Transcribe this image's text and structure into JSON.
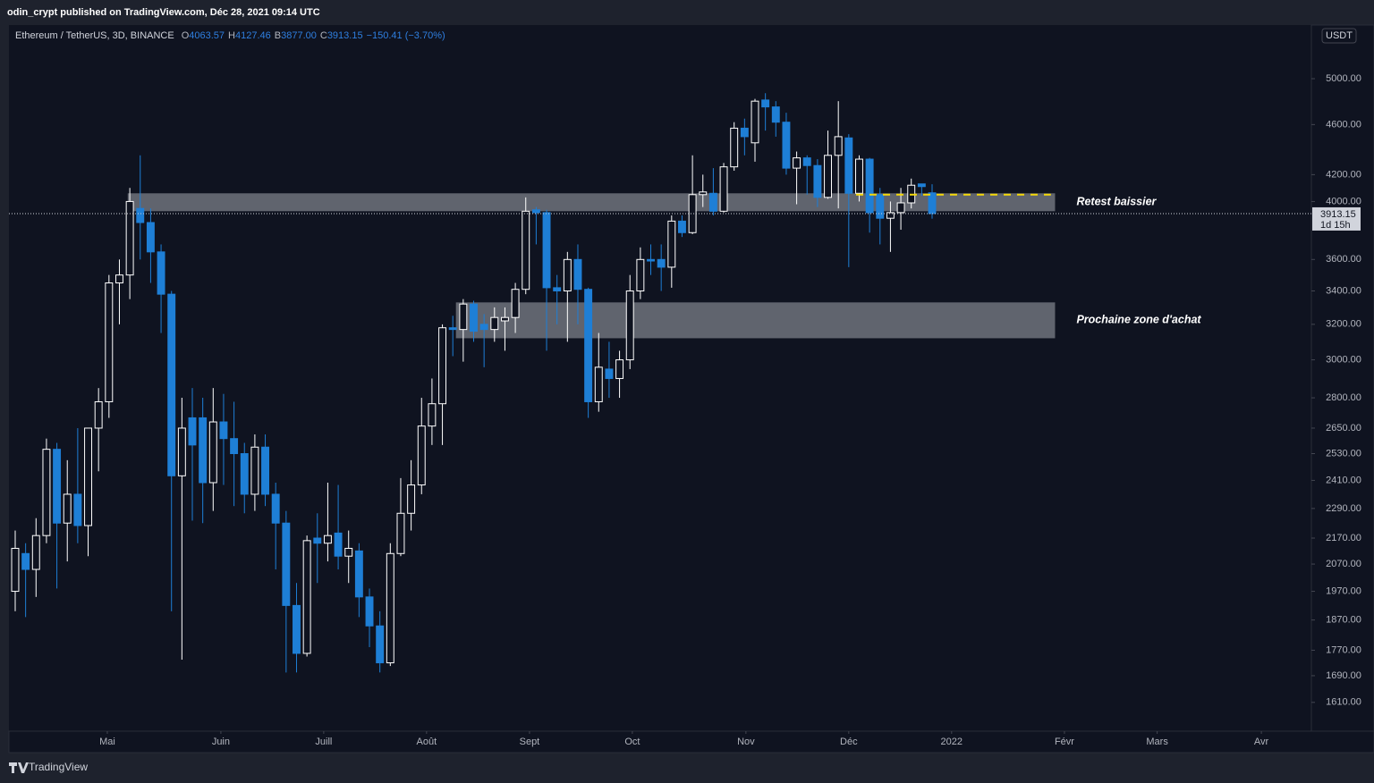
{
  "header": {
    "published": "odin_crypt published on TradingView.com, Déc 28, 2021 09:14 UTC",
    "symbol": "Ethereum / TetherUS, 3D, BINANCE",
    "ohlc_keys": [
      "O",
      "H",
      "B",
      "C"
    ],
    "ohlc_values": [
      "4063.57",
      "4127.46",
      "3877.00",
      "3913.15"
    ],
    "change": "−150.41 (−3.70%)",
    "currency": "USDT",
    "brand": "TradingView"
  },
  "chart_data": {
    "type": "candlestick",
    "y_scale": "log",
    "grid": false,
    "up_color": "#ffffff",
    "down_color": "#1e7fd6",
    "open": [
      1970,
      2110,
      2050,
      2180,
      2550,
      2230,
      2350,
      2220,
      2650,
      2780,
      3450,
      3500,
      3950,
      3850,
      3650,
      3380,
      2430,
      2700,
      2700,
      2400,
      2680,
      2600,
      2530,
      2350,
      2560,
      2350,
      2230,
      1920,
      1760,
      2170,
      2150,
      2190,
      2100,
      2120,
      1950,
      1850,
      1730,
      2110,
      2270,
      2390,
      2660,
      2770,
      3180,
      3170,
      3320,
      3200,
      3170,
      3220,
      3240,
      3410,
      3940,
      3920,
      3420,
      3400,
      3600,
      3410,
      2780,
      2950,
      2900,
      3000,
      3400,
      3600,
      3600,
      3550,
      3860,
      3780,
      4050,
      4060,
      3930,
      4260,
      4570,
      4450,
      4810,
      4750,
      4620,
      4250,
      4330,
      4270,
      4030,
      4350,
      4490,
      4060,
      4320,
      4050,
      3880,
      3920,
      3990,
      4130,
      4063.57
    ],
    "high": [
      2200,
      2150,
      2250,
      2600,
      2580,
      2500,
      2650,
      2650,
      2850,
      3500,
      3600,
      4100,
      4350,
      3950,
      3700,
      3400,
      2800,
      2850,
      2800,
      2850,
      2820,
      2780,
      2580,
      2620,
      2620,
      2400,
      2280,
      2000,
      2180,
      2270,
      2400,
      2390,
      2200,
      2150,
      1980,
      1900,
      2150,
      2420,
      2500,
      2800,
      2900,
      3200,
      3250,
      3350,
      3340,
      3260,
      3300,
      3300,
      3450,
      4030,
      3960,
      3940,
      3500,
      3650,
      3700,
      3420,
      3150,
      3100,
      3050,
      3500,
      3680,
      3700,
      3700,
      3900,
      3900,
      4350,
      4200,
      4250,
      4290,
      4620,
      4650,
      4820,
      4870,
      4800,
      4700,
      4380,
      4350,
      4320,
      4550,
      4800,
      4520,
      4350,
      4330,
      4100,
      4000,
      4100,
      4170,
      4130,
      4127.46
    ],
    "low": [
      1900,
      1880,
      1950,
      2150,
      1980,
      2080,
      2150,
      2100,
      2450,
      2700,
      3200,
      3350,
      3600,
      3450,
      3150,
      1900,
      1740,
      2240,
      2230,
      2280,
      2390,
      2300,
      2270,
      2280,
      2300,
      2050,
      1700,
      1700,
      1750,
      2000,
      2080,
      2050,
      2000,
      1880,
      1780,
      1700,
      1720,
      2100,
      2200,
      2350,
      2570,
      2570,
      3020,
      2990,
      3100,
      2960,
      3100,
      3050,
      3150,
      3380,
      3700,
      3050,
      3200,
      3100,
      3200,
      2700,
      2730,
      2800,
      2800,
      2950,
      3350,
      3500,
      3400,
      3420,
      3750,
      3770,
      3960,
      3900,
      3920,
      4230,
      4350,
      4300,
      4550,
      4500,
      4200,
      3980,
      4050,
      3960,
      4020,
      3950,
      3550,
      4000,
      3780,
      3700,
      3650,
      3800,
      3950,
      4040,
      3877
    ],
    "close": [
      2130,
      2050,
      2180,
      2550,
      2230,
      2350,
      2220,
      2650,
      2780,
      3450,
      3500,
      4000,
      3850,
      3650,
      3380,
      2430,
      2650,
      2570,
      2400,
      2680,
      2600,
      2530,
      2350,
      2560,
      2350,
      2230,
      1920,
      1760,
      2160,
      2150,
      2180,
      2100,
      2130,
      1950,
      1850,
      1730,
      2110,
      2270,
      2390,
      2660,
      2770,
      3180,
      3170,
      3320,
      3160,
      3170,
      3240,
      3240,
      3410,
      3930,
      3920,
      3420,
      3400,
      3600,
      3410,
      2780,
      2960,
      2900,
      3000,
      3400,
      3600,
      3590,
      3550,
      3860,
      3780,
      4050,
      4070,
      3930,
      4260,
      4570,
      4500,
      4800,
      4750,
      4620,
      4250,
      4330,
      4270,
      4030,
      4350,
      4500,
      4060,
      4320,
      3920,
      3880,
      3920,
      3990,
      4120,
      4110,
      3913.15
    ],
    "xlim": [
      -0.6,
      124.4
    ],
    "xticks": [
      {
        "value": 8.84,
        "label": "Mai"
      },
      {
        "value": 19.74,
        "label": "Juin"
      },
      {
        "value": 29.61,
        "label": "Juill"
      },
      {
        "value": 39.48,
        "label": "Août"
      },
      {
        "value": 49.36,
        "label": "Sept"
      },
      {
        "value": 59.23,
        "label": "Oct"
      },
      {
        "value": 70.13,
        "label": "Nov"
      },
      {
        "value": 80.0,
        "label": "Déc"
      },
      {
        "value": 89.87,
        "label": "2022"
      },
      {
        "value": 100.7,
        "label": "Févr"
      },
      {
        "value": 109.6,
        "label": "Mars"
      },
      {
        "value": 119.6,
        "label": "Avr"
      }
    ],
    "ylim": [
      1528,
      5512
    ],
    "yticks": [
      {
        "value": 5000,
        "label": "5000.00"
      },
      {
        "value": 4600,
        "label": "4600.00"
      },
      {
        "value": 4200,
        "label": "4200.00"
      },
      {
        "value": 4000,
        "label": "4000.00"
      },
      {
        "value": 3600,
        "label": "3600.00"
      },
      {
        "value": 3400,
        "label": "3400.00"
      },
      {
        "value": 3200,
        "label": "3200.00"
      },
      {
        "value": 3000,
        "label": "3000.00"
      },
      {
        "value": 2800,
        "label": "2800.00"
      },
      {
        "value": 2650,
        "label": "2650.00"
      },
      {
        "value": 2530,
        "label": "2530.00"
      },
      {
        "value": 2410,
        "label": "2410.00"
      },
      {
        "value": 2290,
        "label": "2290.00"
      },
      {
        "value": 2170,
        "label": "2170.00"
      },
      {
        "value": 2070,
        "label": "2070.00"
      },
      {
        "value": 1970,
        "label": "1970.00"
      },
      {
        "value": 1870,
        "label": "1870.00"
      },
      {
        "value": 1770,
        "label": "1770.00"
      },
      {
        "value": 1690,
        "label": "1690.00"
      },
      {
        "value": 1610,
        "label": "1610.00"
      }
    ],
    "zones": [
      {
        "label": "Retest baissier",
        "from": 3930,
        "to": 4060,
        "x0": 10.8,
        "x1": 99.8,
        "color": "#d1d4dc"
      },
      {
        "label": "Prochaine zone d'achat",
        "from": 3120,
        "to": 3330,
        "x0": 42.3,
        "x1": 99.8,
        "color": "#d1d4dc"
      }
    ],
    "levels": [
      {
        "value": 4050,
        "x0": 80.7,
        "x1": 99.4,
        "color": "#f5d90a"
      }
    ],
    "last_price": {
      "value": 3913.15,
      "countdown": "1d 15h"
    }
  }
}
